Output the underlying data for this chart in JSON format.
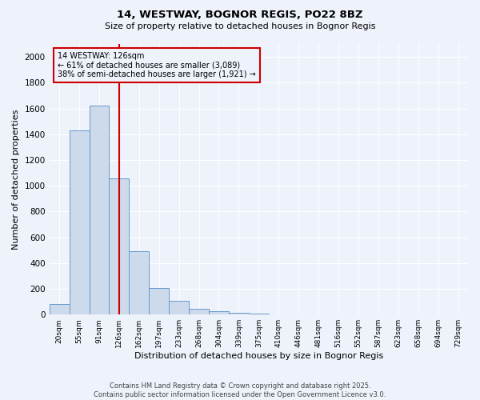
{
  "title1": "14, WESTWAY, BOGNOR REGIS, PO22 8BZ",
  "title2": "Size of property relative to detached houses in Bognor Regis",
  "xlabel": "Distribution of detached houses by size in Bognor Regis",
  "ylabel": "Number of detached properties",
  "bar_labels": [
    "20sqm",
    "55sqm",
    "91sqm",
    "126sqm",
    "162sqm",
    "197sqm",
    "233sqm",
    "268sqm",
    "304sqm",
    "339sqm",
    "375sqm",
    "410sqm",
    "446sqm",
    "481sqm",
    "516sqm",
    "552sqm",
    "587sqm",
    "623sqm",
    "658sqm",
    "694sqm",
    "729sqm"
  ],
  "bar_values": [
    80,
    1430,
    1620,
    1055,
    490,
    205,
    105,
    45,
    25,
    12,
    5,
    0,
    0,
    0,
    0,
    0,
    0,
    0,
    0,
    0,
    0
  ],
  "bar_color": "#ccdaeb",
  "bar_edge_color": "#6699cc",
  "red_line_index": 3,
  "red_line_color": "#cc0000",
  "annotation_title": "14 WESTWAY: 126sqm",
  "annotation_line1": "← 61% of detached houses are smaller (3,089)",
  "annotation_line2": "38% of semi-detached houses are larger (1,921) →",
  "annotation_box_color": "#cc0000",
  "ylim": [
    0,
    2100
  ],
  "yticks": [
    0,
    200,
    400,
    600,
    800,
    1000,
    1200,
    1400,
    1600,
    1800,
    2000
  ],
  "background_color": "#eef2fb",
  "grid_color": "#ffffff",
  "footer1": "Contains HM Land Registry data © Crown copyright and database right 2025.",
  "footer2": "Contains public sector information licensed under the Open Government Licence v3.0."
}
